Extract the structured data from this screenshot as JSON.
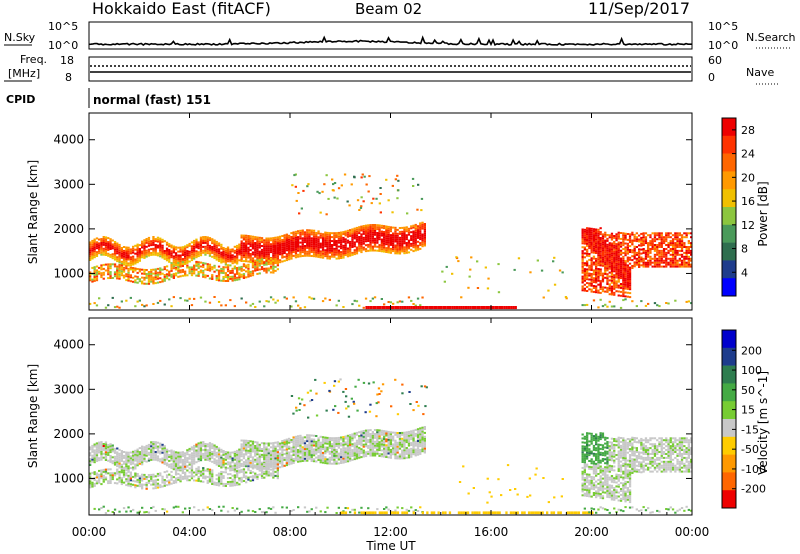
{
  "header": {
    "station": "Hokkaido East (fitACF)",
    "beam": "Beam 02",
    "date": "11/Sep/2017"
  },
  "nsky": {
    "label": "N.Sky",
    "tick_top": "10^5",
    "tick_bottom": "10^0",
    "right_label": "N.Search",
    "right_tick_top": "10^5",
    "right_tick_bottom": "10^0"
  },
  "freq": {
    "label_line1": "Freq.",
    "label_line2": "[MHz]",
    "tick_top": "18",
    "tick_bottom": "8",
    "right_label": "Nave",
    "right_tick_top": "60",
    "right_tick_bottom": "0"
  },
  "cpid": {
    "label": "CPID",
    "value": "normal (fast) 151"
  },
  "axes": {
    "xlabel": "Time UT",
    "xticks": [
      "00:00",
      "04:00",
      "08:00",
      "12:00",
      "16:00",
      "20:00",
      "00:00"
    ],
    "ylabel": "Slant Range [km]",
    "yticks": [
      "1000",
      "2000",
      "3000",
      "4000"
    ]
  },
  "power_scale": {
    "label": "Power [dB]",
    "ticks": [
      "4",
      "8",
      "12",
      "16",
      "20",
      "24",
      "28"
    ],
    "colors": [
      "#0000ff",
      "#1e3c8c",
      "#2f6e4f",
      "#4a9a5a",
      "#8cc63f",
      "#f0c000",
      "#ff9900",
      "#ff6600",
      "#ff3300",
      "#ee0000"
    ]
  },
  "velocity_scale": {
    "label": "Velocity [m s^-1]",
    "ticks": [
      "200",
      "100",
      "50",
      "15",
      "-15",
      "-50",
      "-100",
      "-200"
    ],
    "colors": [
      "#0000cc",
      "#1e3c8c",
      "#2e7d4f",
      "#44aa44",
      "#77cc33",
      "#c8c8c8",
      "#ffcc00",
      "#ff9900",
      "#ff6600",
      "#ee0000"
    ]
  },
  "chart_data": [
    {
      "type": "heatmap",
      "title": "Power",
      "xlabel": "Time UT",
      "ylabel": "Slant Range [km]",
      "xlim": [
        "00:00",
        "24:00"
      ],
      "ylim": [
        180,
        4600
      ],
      "colorbar_label": "Power [dB]",
      "colorbar_range": [
        0,
        30
      ],
      "bands": [
        {
          "start_h": 0.0,
          "end_h": 13.3,
          "range_low_km": 700,
          "range_high_km": 2000,
          "power_db": 24
        },
        {
          "start_h": 6.0,
          "end_h": 13.3,
          "range_low_km": 1200,
          "range_high_km": 2000,
          "power_db": 28
        },
        {
          "start_h": 19.6,
          "end_h": 24.0,
          "range_low_km": 400,
          "range_high_km": 2000,
          "power_db": 27
        },
        {
          "start_h": 11.0,
          "end_h": 17.0,
          "range_low_km": 200,
          "range_high_km": 300,
          "power_db": 30
        }
      ]
    },
    {
      "type": "heatmap",
      "title": "Velocity",
      "xlabel": "Time UT",
      "ylabel": "Slant Range [km]",
      "xlim": [
        "00:00",
        "24:00"
      ],
      "ylim": [
        180,
        4600
      ],
      "colorbar_label": "Velocity [m s^-1]",
      "colorbar_range": [
        -250,
        250
      ],
      "bands": [
        {
          "start_h": 0.0,
          "end_h": 13.3,
          "range_low_km": 700,
          "range_high_km": 2000,
          "velocity_ms": 0
        },
        {
          "start_h": 19.6,
          "end_h": 24.0,
          "range_low_km": 400,
          "range_high_km": 2000,
          "velocity_ms": 0
        },
        {
          "start_h": 19.7,
          "end_h": 20.6,
          "range_low_km": 1400,
          "range_high_km": 2300,
          "velocity_ms": 40
        },
        {
          "start_h": 10.0,
          "end_h": 20.0,
          "range_low_km": 200,
          "range_high_km": 300,
          "velocity_ms": -20
        }
      ]
    }
  ]
}
